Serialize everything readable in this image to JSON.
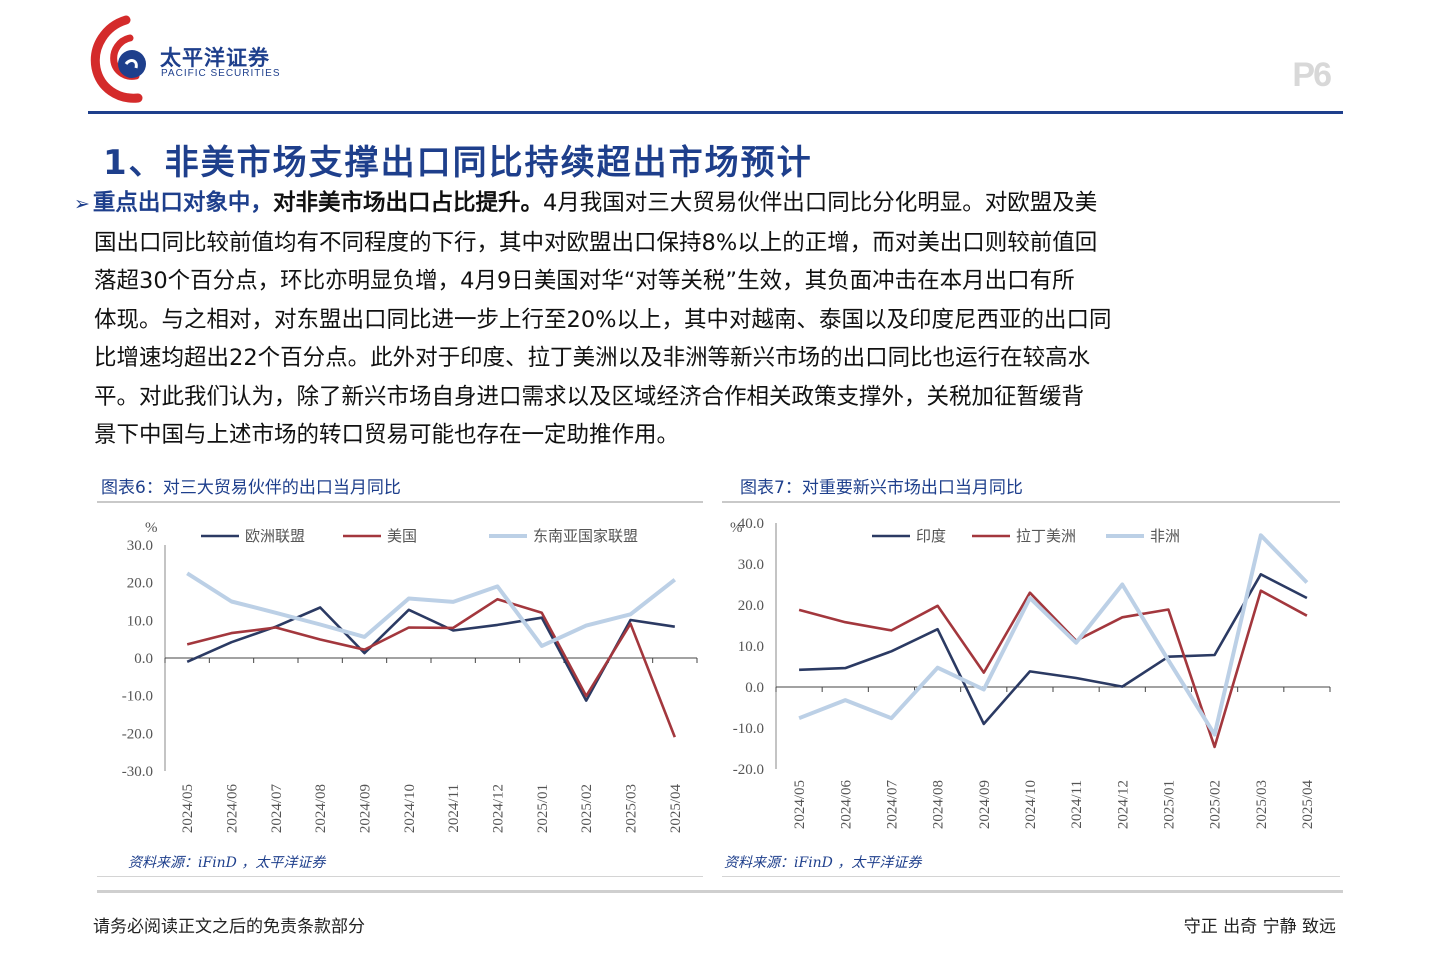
{
  "header": {
    "logo_cn": "太平洋证券",
    "logo_en": "PACIFIC SECURITIES",
    "page_number": "P6"
  },
  "section_title": "1、非美市场支撑出口同比持续超出市场预计",
  "body": {
    "bullet": "➢",
    "lead_blue": "重点出口对象中，",
    "lead_bold": "对非美市场出口占比提升。",
    "lines": [
      "4月我国对三大贸易伙伴出口同比分化明显。对欧盟及美",
      "国出口同比较前值均有不同程度的下行，其中对欧盟出口保持8%以上的正增，而对美出口则较前值回",
      "落超30个百分点，环比亦明显负增，4月9日美国对华“对等关税”生效，其负面冲击在本月出口有所",
      "体现。与之相对，对东盟出口同比进一步上行至20%以上，其中对越南、泰国以及印度尼西亚的出口同",
      "比增速均超出22个百分点。此外对于印度、拉丁美洲以及非洲等新兴市场的出口同比也运行在较高水",
      "平。对此我们认为，除了新兴市场自身进口需求以及区域经济合作相关政策支撑外，关税加征暂缓背",
      "景下中国与上述市场的转口贸易可能也存在一定助推作用。"
    ]
  },
  "charts": {
    "left": {
      "title": "图表6：对三大贸易伙伴的出口当月同比",
      "source": "资料来源：iFinD ，太平洋证券"
    },
    "right": {
      "title": "图表7：对重要新兴市场出口当月同比",
      "source": "资料来源：iFinD ，太平洋证券"
    }
  },
  "footer": {
    "left": "请务必阅读正文之后的免责条款部分",
    "right": "守正 出奇 宁静 致远"
  },
  "chart_data": [
    {
      "type": "line",
      "title": "图表6：对三大贸易伙伴的出口当月同比",
      "ylabel": "%",
      "ylim": [
        -30,
        30
      ],
      "yticks": [
        "30.0",
        "20.0",
        "10.0",
        "0.0",
        "-10.0",
        "-20.0",
        "-30.0"
      ],
      "legend_position": "top",
      "x": [
        "2024/05",
        "2024/06",
        "2024/07",
        "2024/08",
        "2024/09",
        "2024/10",
        "2024/11",
        "2024/12",
        "2025/01",
        "2025/02",
        "2025/03",
        "2025/04"
      ],
      "series": [
        {
          "name": "欧洲联盟",
          "color": "#2b3a63",
          "values": [
            -1,
            4.2,
            8.3,
            13.4,
            1.3,
            12.8,
            7.3,
            8.8,
            10.7,
            -11.3,
            10.1,
            8.3
          ]
        },
        {
          "name": "美国",
          "color": "#a3373d",
          "values": [
            3.6,
            6.6,
            8.1,
            4.9,
            2.2,
            8.1,
            8.0,
            15.6,
            12.0,
            -10.1,
            9.1,
            -21.0
          ]
        },
        {
          "name": "东南亚国家联盟",
          "color": "#bcd0e6",
          "values": [
            22.5,
            15.0,
            12.0,
            8.9,
            5.6,
            15.8,
            14.9,
            19.0,
            3.2,
            8.6,
            11.6,
            20.8
          ]
        }
      ]
    },
    {
      "type": "line",
      "title": "图表7：对重要新兴市场出口当月同比",
      "ylabel": "%",
      "ylim": [
        -20,
        40
      ],
      "yticks": [
        "40.0",
        "30.0",
        "20.0",
        "10.0",
        "0.0",
        "-10.0",
        "-20.0"
      ],
      "legend_position": "top",
      "x": [
        "2024/05",
        "2024/06",
        "2024/07",
        "2024/08",
        "2024/09",
        "2024/10",
        "2024/11",
        "2024/12",
        "2025/01",
        "2025/02",
        "2025/03",
        "2025/04"
      ],
      "series": [
        {
          "name": "印度",
          "color": "#2b3a63",
          "values": [
            4.2,
            4.6,
            8.7,
            14.1,
            -9.0,
            3.8,
            2.2,
            0.1,
            7.4,
            7.8,
            27.5,
            21.7
          ]
        },
        {
          "name": "拉丁美洲",
          "color": "#a3373d",
          "values": [
            18.8,
            15.8,
            13.8,
            19.8,
            3.5,
            23.0,
            11.3,
            17.0,
            18.9,
            -14.6,
            23.5,
            17.4
          ]
        },
        {
          "name": "非洲",
          "color": "#bcd0e6",
          "values": [
            -7.6,
            -3.2,
            -7.6,
            4.7,
            -0.6,
            21.7,
            10.8,
            25.0,
            6.5,
            -11.6,
            37.0,
            25.5
          ]
        }
      ]
    }
  ]
}
